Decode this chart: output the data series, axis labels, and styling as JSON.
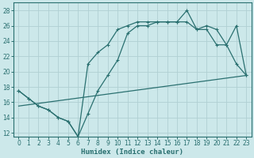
{
  "xlabel": "Humidex (Indice chaleur)",
  "bg_color": "#cce8ea",
  "grid_color": "#b0d0d3",
  "line_color": "#2a7070",
  "xlim": [
    -0.5,
    23.5
  ],
  "ylim": [
    11.5,
    29
  ],
  "xticks": [
    0,
    1,
    2,
    3,
    4,
    5,
    6,
    7,
    8,
    9,
    10,
    11,
    12,
    13,
    14,
    15,
    16,
    17,
    18,
    19,
    20,
    21,
    22,
    23
  ],
  "yticks": [
    12,
    14,
    16,
    18,
    20,
    22,
    24,
    26,
    28
  ],
  "curve1_x": [
    0,
    1,
    2,
    3,
    4,
    5,
    6,
    7,
    8,
    9,
    10,
    11,
    12,
    13,
    14,
    15,
    16,
    17,
    18,
    19,
    20,
    21,
    22,
    23
  ],
  "curve1_y": [
    17.5,
    16.5,
    15.5,
    15.0,
    14.0,
    13.5,
    11.5,
    14.5,
    17.5,
    19.5,
    21.5,
    25.0,
    26.0,
    26.0,
    26.5,
    26.5,
    26.5,
    28.0,
    25.5,
    26.0,
    25.5,
    23.5,
    26.0,
    19.5
  ],
  "curve2_x": [
    0,
    1,
    2,
    3,
    4,
    5,
    6,
    7,
    8,
    9,
    10,
    11,
    12,
    13,
    14,
    15,
    16,
    17,
    18,
    19,
    20,
    21,
    22,
    23
  ],
  "curve2_y": [
    17.5,
    16.5,
    15.5,
    15.0,
    14.0,
    13.5,
    11.5,
    21.0,
    22.5,
    23.5,
    25.5,
    26.0,
    26.5,
    26.5,
    26.5,
    26.5,
    26.5,
    26.5,
    25.5,
    25.5,
    23.5,
    23.5,
    21.0,
    19.5
  ],
  "curve3_x": [
    0,
    23
  ],
  "curve3_y": [
    15.5,
    19.5
  ]
}
